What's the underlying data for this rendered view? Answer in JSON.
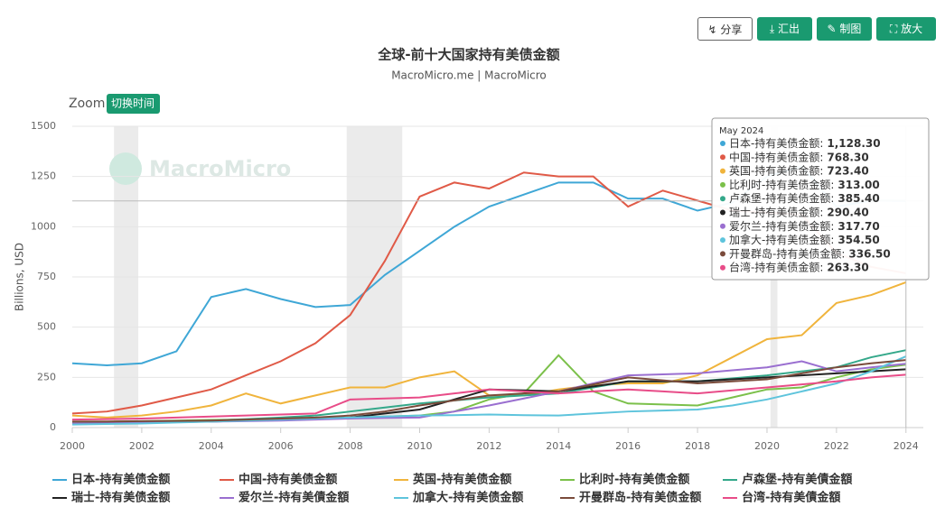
{
  "header": {
    "buttons": [
      "分享",
      "汇出",
      "制图",
      "放大"
    ]
  },
  "zoom": {
    "label": "Zoom",
    "button": "切换时间"
  },
  "watermark": "MacroMicro",
  "chart_data": {
    "type": "line",
    "title": "全球-前十大国家持有美债金额",
    "subtitle": "MacroMicro.me | MacroMicro",
    "y_label": "Billions, USD",
    "x": [
      2000,
      2001,
      2002,
      2003,
      2004,
      2005,
      2006,
      2007,
      2008,
      2009,
      2010,
      2011,
      2012,
      2013,
      2014,
      2015,
      2016,
      2017,
      2018,
      2019,
      2020,
      2021,
      2022,
      2023,
      2024
    ],
    "xlim": [
      2000,
      2024.5
    ],
    "xticks": [
      2000,
      2002,
      2004,
      2006,
      2008,
      2010,
      2012,
      2014,
      2016,
      2018,
      2020,
      2022,
      2024
    ],
    "ylim": [
      0,
      1500
    ],
    "yticks": [
      0,
      250,
      500,
      750,
      1000,
      1250,
      1500
    ],
    "grid": true,
    "shaded_periods": [
      [
        2001.2,
        2001.9
      ],
      [
        2007.9,
        2009.5
      ],
      [
        2020.1,
        2020.3
      ]
    ],
    "series": [
      {
        "name": "日本-持有美债金额",
        "color": "#3fa7d6",
        "values": [
          320,
          310,
          320,
          380,
          650,
          690,
          640,
          600,
          610,
          760,
          880,
          1000,
          1100,
          1160,
          1220,
          1220,
          1140,
          1140,
          1080,
          1120,
          1250,
          1300,
          1100,
          1130,
          1128.3
        ]
      },
      {
        "name": "中国-持有美债金额",
        "color": "#e05a47",
        "values": [
          70,
          80,
          110,
          150,
          190,
          260,
          330,
          420,
          560,
          830,
          1150,
          1220,
          1190,
          1270,
          1250,
          1250,
          1100,
          1180,
          1130,
          1080,
          1070,
          1060,
          870,
          800,
          768.3
        ]
      },
      {
        "name": "英国-持有美债金额",
        "color": "#f0b43c",
        "values": [
          60,
          50,
          60,
          80,
          110,
          170,
          120,
          160,
          200,
          200,
          250,
          280,
          160,
          160,
          190,
          210,
          220,
          220,
          260,
          350,
          440,
          460,
          620,
          660,
          723.4
        ]
      },
      {
        "name": "比利时-持有美债金额",
        "color": "#7bc04a",
        "values": [
          30,
          30,
          32,
          35,
          38,
          40,
          42,
          45,
          50,
          55,
          60,
          80,
          140,
          170,
          360,
          180,
          120,
          115,
          110,
          150,
          190,
          200,
          250,
          290,
          313
        ]
      },
      {
        "name": "卢森堡-持有美債金額",
        "color": "#34a88a",
        "values": [
          20,
          22,
          25,
          30,
          35,
          42,
          50,
          60,
          80,
          100,
          120,
          135,
          150,
          160,
          170,
          200,
          230,
          230,
          230,
          245,
          260,
          280,
          300,
          350,
          385.4
        ]
      },
      {
        "name": "瑞士-持有美债金额",
        "color": "#222222",
        "values": [
          20,
          22,
          25,
          28,
          30,
          35,
          40,
          45,
          50,
          70,
          90,
          140,
          190,
          185,
          180,
          205,
          230,
          230,
          230,
          240,
          250,
          260,
          270,
          280,
          290.4
        ]
      },
      {
        "name": "爱尔兰-持有美債金額",
        "color": "#9a6fd0",
        "values": [
          20,
          22,
          25,
          28,
          30,
          32,
          35,
          40,
          45,
          48,
          50,
          80,
          110,
          145,
          180,
          220,
          260,
          265,
          270,
          285,
          300,
          330,
          280,
          300,
          317.7
        ]
      },
      {
        "name": "加拿大-持有美债金额",
        "color": "#5ec4dc",
        "values": [
          15,
          18,
          20,
          25,
          30,
          35,
          40,
          45,
          50,
          55,
          60,
          62,
          65,
          62,
          60,
          70,
          80,
          85,
          90,
          110,
          140,
          180,
          220,
          280,
          354.5
        ]
      },
      {
        "name": "开曼群岛-持有美债金额",
        "color": "#7a4b3b",
        "values": [
          30,
          30,
          32,
          33,
          35,
          40,
          45,
          50,
          60,
          80,
          110,
          135,
          160,
          170,
          180,
          215,
          250,
          235,
          220,
          230,
          240,
          270,
          300,
          320,
          336.5
        ]
      },
      {
        "name": "台湾-持有美債金額",
        "color": "#e84c88",
        "values": [
          40,
          42,
          45,
          50,
          55,
          60,
          65,
          70,
          140,
          145,
          150,
          170,
          190,
          180,
          170,
          180,
          190,
          180,
          170,
          185,
          200,
          215,
          230,
          250,
          263.3
        ]
      }
    ],
    "tooltip": {
      "title": "May 2024",
      "items": [
        {
          "label": "日本-持有美债金额:",
          "value": "1,128.30"
        },
        {
          "label": "中国-持有美债金额:",
          "value": "768.30"
        },
        {
          "label": "英国-持有美债金额:",
          "value": "723.40"
        },
        {
          "label": "比利时-持有美债金额:",
          "value": "313.00"
        },
        {
          "label": "卢森堡-持有美债金额:",
          "value": "385.40"
        },
        {
          "label": "瑞士-持有美债金额:",
          "value": "290.40"
        },
        {
          "label": "爱尔兰-持有美债金额:",
          "value": "317.70"
        },
        {
          "label": "加拿大-持有美债金额:",
          "value": "354.50"
        },
        {
          "label": "开曼群岛-持有美债金额:",
          "value": "336.50"
        },
        {
          "label": "台湾-持有美债金额:",
          "value": "263.30"
        }
      ]
    }
  }
}
